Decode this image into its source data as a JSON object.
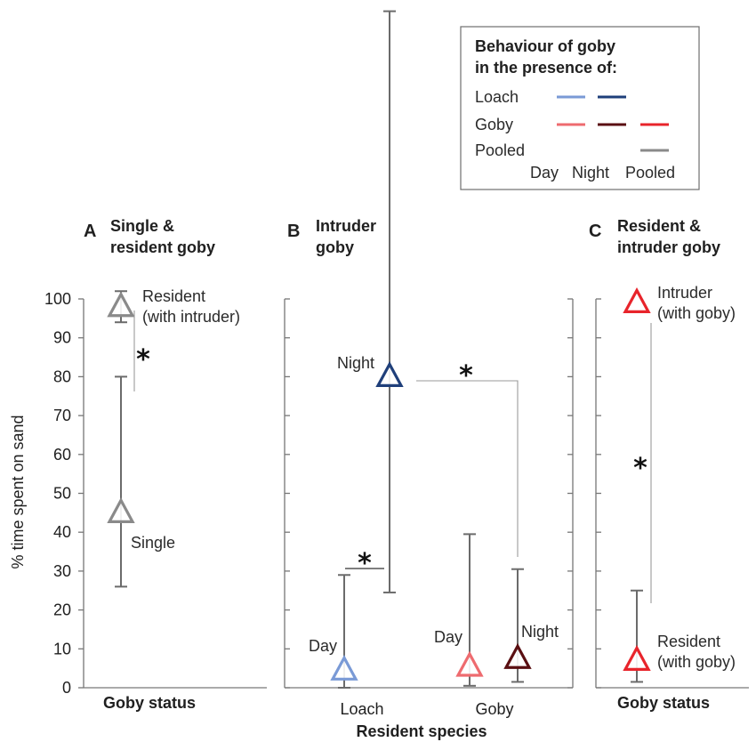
{
  "chart_data": {
    "type": "scatter",
    "ylabel": "% time spent on sand",
    "ylim": [
      0,
      100
    ],
    "yticks": [
      0,
      10,
      20,
      30,
      40,
      50,
      60,
      70,
      80,
      90,
      100
    ],
    "grid": false,
    "colors": {
      "loach_day": "#7a9ad6",
      "loach_night": "#1f3f7a",
      "goby_day": "#ee6b6f",
      "goby_night": "#5a0f12",
      "goby_pooled": "#e8242b",
      "pooled": "#8a8a8a",
      "errorbar": "#6b6b6b"
    },
    "legend": {
      "title_lines": [
        "Behaviour of goby",
        "in the presence of:"
      ],
      "rows": [
        {
          "label": "Loach",
          "keys": [
            "loach_day",
            "loach_night"
          ]
        },
        {
          "label": "Goby",
          "keys": [
            "goby_day",
            "goby_night",
            "goby_pooled"
          ]
        },
        {
          "label": "Pooled",
          "keys": [
            "pooled"
          ]
        }
      ],
      "columns": [
        "Day",
        "Night",
        "Pooled"
      ],
      "placement": "top-right"
    },
    "panels": [
      {
        "letter": "A",
        "title_lines": [
          "Single &",
          "resident goby"
        ],
        "xlabel": "Goby status",
        "points": [
          {
            "id": "single",
            "y": 45,
            "low": 26,
            "high": 80,
            "color_key": "pooled",
            "label_lines": [
              "Single"
            ]
          },
          {
            "id": "resident-with-intruder",
            "y": 98,
            "low": 94,
            "high": 102,
            "color_key": "pooled",
            "label_lines": [
              "Resident",
              "(with intruder)"
            ]
          }
        ],
        "significance": [
          {
            "symbol": "*"
          }
        ]
      },
      {
        "letter": "B",
        "title_lines": [
          "Intruder",
          "goby"
        ],
        "xlabel": "Resident species",
        "categories": [
          "Loach",
          "Goby"
        ],
        "points": [
          {
            "id": "loach-day",
            "category": "Loach",
            "y": 4.5,
            "low": 0,
            "high": 29,
            "color_key": "loach_day",
            "label_lines": [
              "Day"
            ]
          },
          {
            "id": "loach-night",
            "category": "Loach",
            "y": 80,
            "low": 24.5,
            "high": 174,
            "color_key": "loach_night",
            "label_lines": [
              "Night"
            ]
          },
          {
            "id": "goby-day",
            "category": "Goby",
            "y": 5.5,
            "low": 0.5,
            "high": 39.5,
            "color_key": "goby_day",
            "label_lines": [
              "Day"
            ]
          },
          {
            "id": "goby-night",
            "category": "Goby",
            "y": 7.5,
            "low": 1.5,
            "high": 30.5,
            "color_key": "goby_night",
            "label_lines": [
              "Night"
            ]
          }
        ],
        "significance": [
          {
            "symbol": "*"
          },
          {
            "symbol": "*"
          }
        ]
      },
      {
        "letter": "C",
        "title_lines": [
          "Resident &",
          "intruder goby"
        ],
        "xlabel": "Goby status",
        "points": [
          {
            "id": "intruder-with-goby",
            "y": 99,
            "color_key": "goby_pooled",
            "label_lines": [
              "Intruder",
              "(with goby)"
            ]
          },
          {
            "id": "resident-with-goby",
            "y": 7,
            "low": 1.5,
            "high": 25,
            "color_key": "goby_pooled",
            "label_lines": [
              "Resident",
              "(with goby)"
            ]
          }
        ],
        "significance": [
          {
            "symbol": "*"
          }
        ]
      }
    ]
  }
}
